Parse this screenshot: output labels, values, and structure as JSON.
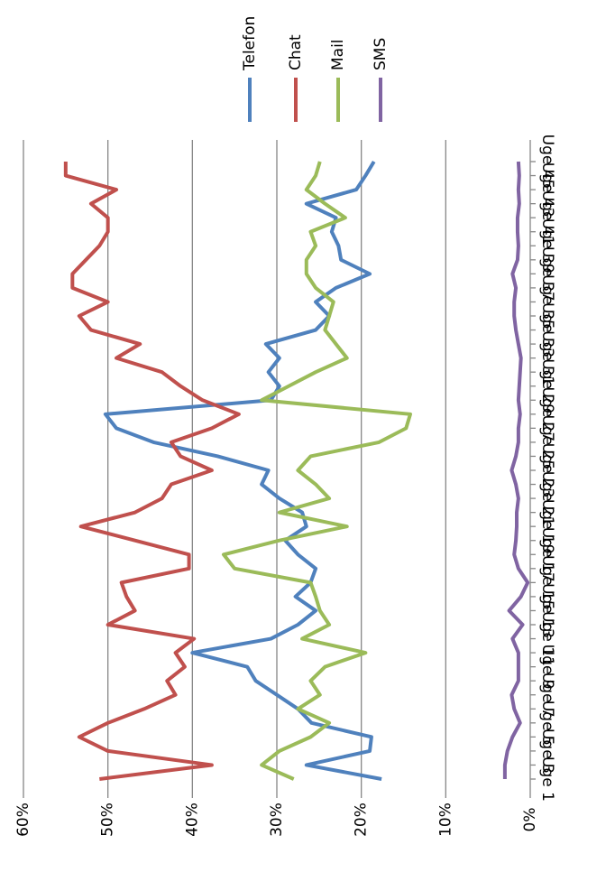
{
  "chart_data": {
    "type": "line",
    "categories": [
      "Uge 1",
      null,
      "Uge 3",
      null,
      "Uge 5",
      null,
      "Uge 7",
      null,
      "Uge 9",
      null,
      "Uge 11",
      null,
      "Uge 13",
      null,
      "Uge 15",
      null,
      "Uge 17",
      null,
      "Uge 19",
      null,
      "Uge 21",
      null,
      "Uge 23",
      null,
      "Uge 25",
      null,
      "Uge 27",
      null,
      "Uge 29",
      null,
      "Uge 31",
      null,
      "Uge 33",
      null,
      "Uge 35",
      null,
      "Uge 37",
      null,
      "Uge 39",
      null,
      "Uge 41",
      null,
      "Uge 43",
      null,
      "Uge 45"
    ],
    "series": [
      {
        "name": "Telefon",
        "color": "#4f81bd",
        "values": [
          17.6,
          26.5,
          19.0,
          18.8,
          25.9,
          27.5,
          30.0,
          32.5,
          33.5,
          40.0,
          30.7,
          27.5,
          25.4,
          27.8,
          26.0,
          25.4,
          27.5,
          29.0,
          26.5,
          27.0,
          29.7,
          31.8,
          31.0,
          37.0,
          44.6,
          49.0,
          50.3,
          30.7,
          29.7,
          31.0,
          29.7,
          31.3,
          25.4,
          23.8,
          25.4,
          23.0,
          19.0,
          22.4,
          22.7,
          23.5,
          23.0,
          26.5,
          20.6,
          19.5,
          18.5
        ]
      },
      {
        "name": "Chat",
        "color": "#c0504d",
        "values": [
          51.0,
          37.7,
          50.0,
          53.4,
          50.0,
          45.7,
          42.0,
          43.0,
          40.9,
          42.0,
          39.8,
          50.0,
          46.8,
          47.8,
          48.4,
          40.4,
          40.4,
          46.8,
          53.2,
          46.8,
          43.6,
          42.5,
          37.7,
          41.4,
          42.5,
          37.7,
          34.5,
          38.8,
          41.4,
          43.6,
          49.0,
          46.2,
          52.0,
          53.4,
          50.0,
          54.2,
          54.2,
          52.6,
          51.0,
          50.0,
          50.0,
          52.0,
          49.0,
          55.0,
          55.0
        ]
      },
      {
        "name": "Mail",
        "color": "#9bbb59",
        "values": [
          28.0,
          31.8,
          29.7,
          26.0,
          23.8,
          27.5,
          24.9,
          26.0,
          24.3,
          19.5,
          27.0,
          23.8,
          24.9,
          25.4,
          26.0,
          35.0,
          36.3,
          29.7,
          21.7,
          29.7,
          23.8,
          25.4,
          27.5,
          26.0,
          17.9,
          14.7,
          14.2,
          31.8,
          28.6,
          25.4,
          21.7,
          23.0,
          24.3,
          23.8,
          23.3,
          25.4,
          26.5,
          26.5,
          25.4,
          26.0,
          21.9,
          24.3,
          26.5,
          25.4,
          24.9
        ]
      },
      {
        "name": "SMS",
        "color": "#8064a2",
        "values": [
          3.0,
          3.0,
          2.7,
          2.1,
          1.2,
          1.9,
          2.2,
          1.4,
          1.4,
          1.4,
          2.1,
          0.9,
          2.5,
          1.1,
          0.3,
          1.4,
          1.9,
          1.7,
          1.6,
          1.6,
          1.4,
          1.7,
          2.2,
          1.7,
          1.4,
          1.4,
          1.2,
          1.4,
          1.3,
          1.2,
          1.1,
          1.4,
          1.7,
          1.9,
          1.9,
          1.7,
          2.1,
          1.5,
          1.4,
          1.5,
          1.5,
          1.3,
          1.4,
          1.3,
          1.4
        ]
      }
    ],
    "ylim": [
      0,
      60
    ],
    "yticks": [
      {
        "value": 0,
        "label": "0%"
      },
      {
        "value": 10,
        "label": "10%"
      },
      {
        "value": 20,
        "label": "20%"
      },
      {
        "value": 30,
        "label": "30%"
      },
      {
        "value": 40,
        "label": "40%"
      },
      {
        "value": 50,
        "label": "50%"
      },
      {
        "value": 60,
        "label": "60%"
      }
    ],
    "grid": true
  }
}
